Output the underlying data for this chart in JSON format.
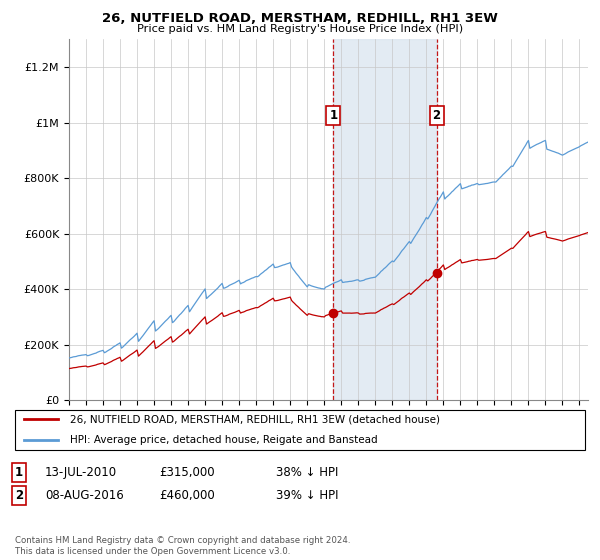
{
  "title": "26, NUTFIELD ROAD, MERSTHAM, REDHILL, RH1 3EW",
  "subtitle": "Price paid vs. HM Land Registry's House Price Index (HPI)",
  "ylabel_ticks": [
    "£0",
    "£200K",
    "£400K",
    "£600K",
    "£800K",
    "£1M",
    "£1.2M"
  ],
  "ytick_values": [
    0,
    200000,
    400000,
    600000,
    800000,
    1000000,
    1200000
  ],
  "ylim": [
    0,
    1300000
  ],
  "xlim_start": 1995.0,
  "xlim_end": 2025.5,
  "hpi_color": "#5b9bd5",
  "paid_color": "#c00000",
  "shading_color": "#dce6f1",
  "legend_paid": "26, NUTFIELD ROAD, MERSTHAM, REDHILL, RH1 3EW (detached house)",
  "legend_hpi": "HPI: Average price, detached house, Reigate and Banstead",
  "transaction1_date": "13-JUL-2010",
  "transaction1_price": "£315,000",
  "transaction1_pct": "38% ↓ HPI",
  "transaction1_x": 2010.54,
  "transaction1_y": 315000,
  "transaction2_date": "08-AUG-2016",
  "transaction2_price": "£460,000",
  "transaction2_pct": "39% ↓ HPI",
  "transaction2_x": 2016.6,
  "transaction2_y": 460000,
  "footnote": "Contains HM Land Registry data © Crown copyright and database right 2024.\nThis data is licensed under the Open Government Licence v3.0."
}
